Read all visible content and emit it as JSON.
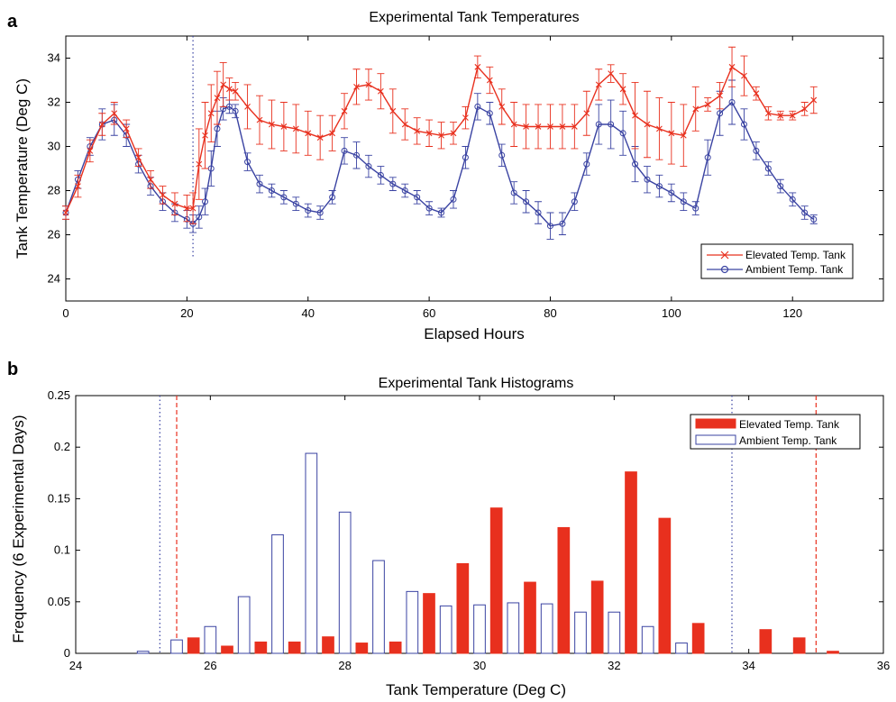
{
  "chart_data": [
    {
      "panel_label": "a",
      "type": "line",
      "title": "Experimental Tank Temperatures",
      "xlabel": "Elapsed Hours",
      "ylabel": "Tank Temperature (Deg C)",
      "xlim": [
        0,
        135
      ],
      "ylim": [
        23,
        35
      ],
      "xticks": [
        0,
        20,
        40,
        60,
        80,
        100,
        120
      ],
      "yticks": [
        24,
        26,
        28,
        30,
        32,
        34
      ],
      "xtick_labels": [
        "0",
        "20",
        "40",
        "60",
        "80",
        "100",
        "120"
      ],
      "ytick_labels": [
        "24",
        "26",
        "28",
        "30",
        "32",
        "34"
      ],
      "vline_x": 21,
      "vline_range": [
        25,
        35
      ],
      "legend_position": "bottom-right",
      "series": [
        {
          "name": "Elevated Temp. Tank",
          "color": "#e8301e",
          "marker": "x",
          "x": [
            0,
            2,
            4,
            6,
            8,
            10,
            12,
            14,
            16,
            18,
            20,
            21,
            22,
            23,
            24,
            25,
            26,
            27,
            28,
            30,
            32,
            34,
            36,
            38,
            40,
            42,
            44,
            46,
            48,
            50,
            52,
            54,
            56,
            58,
            60,
            62,
            64,
            66,
            68,
            70,
            72,
            74,
            76,
            78,
            80,
            82,
            84,
            86,
            88,
            90,
            92,
            94,
            96,
            98,
            100,
            102,
            104,
            106,
            108,
            110,
            112,
            114,
            116,
            118,
            120,
            122,
            123.5
          ],
          "y": [
            27.0,
            28.2,
            29.8,
            31.0,
            31.5,
            30.8,
            29.5,
            28.5,
            27.8,
            27.4,
            27.2,
            27.2,
            29.2,
            30.5,
            31.5,
            32.2,
            32.8,
            32.6,
            32.5,
            31.8,
            31.2,
            31.0,
            30.9,
            30.8,
            30.6,
            30.4,
            30.6,
            31.6,
            32.7,
            32.8,
            32.5,
            31.6,
            31.0,
            30.7,
            30.6,
            30.5,
            30.6,
            31.3,
            33.6,
            33.0,
            31.8,
            31.0,
            30.9,
            30.9,
            30.9,
            30.9,
            30.9,
            31.5,
            32.8,
            33.3,
            32.6,
            31.4,
            31.0,
            30.8,
            30.6,
            30.5,
            31.7,
            31.9,
            32.3,
            33.6,
            33.2,
            32.4,
            31.5,
            31.4,
            31.4,
            31.7,
            32.1
          ],
          "err": [
            0.3,
            0.5,
            0.5,
            0.5,
            0.5,
            0.4,
            0.4,
            0.4,
            0.4,
            0.5,
            0.6,
            0.7,
            1.6,
            1.5,
            1.3,
            1.2,
            1.0,
            0.5,
            0.4,
            1.0,
            1.1,
            1.1,
            1.1,
            1.1,
            1.0,
            1.0,
            0.8,
            0.8,
            0.8,
            0.7,
            0.8,
            1.0,
            0.7,
            0.6,
            0.6,
            0.6,
            0.5,
            0.5,
            0.5,
            0.6,
            0.8,
            1.0,
            1.0,
            1.0,
            1.0,
            1.0,
            1.0,
            1.0,
            0.7,
            0.4,
            0.7,
            1.5,
            1.5,
            1.4,
            1.4,
            1.4,
            1.0,
            0.3,
            0.6,
            0.9,
            0.9,
            0.3,
            0.3,
            0.2,
            0.2,
            0.3,
            0.6
          ]
        },
        {
          "name": "Ambient Temp. Tank",
          "color": "#3a43a2",
          "marker": "o",
          "x": [
            0,
            2,
            4,
            6,
            8,
            10,
            12,
            14,
            16,
            18,
            20,
            21,
            22,
            23,
            24,
            25,
            26,
            27,
            28,
            30,
            32,
            34,
            36,
            38,
            40,
            42,
            44,
            46,
            48,
            50,
            52,
            54,
            56,
            58,
            60,
            62,
            64,
            66,
            68,
            70,
            72,
            74,
            76,
            78,
            80,
            82,
            84,
            86,
            88,
            90,
            92,
            94,
            96,
            98,
            100,
            102,
            104,
            106,
            108,
            110,
            112,
            114,
            116,
            118,
            120,
            122,
            123.5
          ],
          "y": [
            27.0,
            28.5,
            30.0,
            31.0,
            31.2,
            30.5,
            29.2,
            28.2,
            27.5,
            27.0,
            26.7,
            26.5,
            26.8,
            27.5,
            29.0,
            30.8,
            31.7,
            31.8,
            31.6,
            29.3,
            28.3,
            28.0,
            27.7,
            27.4,
            27.1,
            27.0,
            27.7,
            29.8,
            29.6,
            29.1,
            28.7,
            28.3,
            28.0,
            27.7,
            27.2,
            27.0,
            27.6,
            29.5,
            31.8,
            31.5,
            29.6,
            27.9,
            27.5,
            27.0,
            26.4,
            26.5,
            27.5,
            29.2,
            31.0,
            31.0,
            30.6,
            29.2,
            28.5,
            28.2,
            27.9,
            27.5,
            27.2,
            29.5,
            31.5,
            32.0,
            31.0,
            29.8,
            29.0,
            28.2,
            27.6,
            27.0,
            26.7
          ],
          "err": [
            0.3,
            0.4,
            0.4,
            0.7,
            0.7,
            0.5,
            0.4,
            0.4,
            0.4,
            0.4,
            0.4,
            0.4,
            0.5,
            0.6,
            0.8,
            0.8,
            0.5,
            0.3,
            0.3,
            0.4,
            0.4,
            0.3,
            0.3,
            0.3,
            0.3,
            0.3,
            0.3,
            0.6,
            0.6,
            0.5,
            0.4,
            0.3,
            0.3,
            0.3,
            0.3,
            0.2,
            0.4,
            0.5,
            0.6,
            0.5,
            0.5,
            0.5,
            0.5,
            0.5,
            0.6,
            0.5,
            0.4,
            0.5,
            0.9,
            1.1,
            1.0,
            0.8,
            0.6,
            0.5,
            0.4,
            0.4,
            0.3,
            0.8,
            1.0,
            1.0,
            0.7,
            0.4,
            0.3,
            0.3,
            0.3,
            0.3,
            0.2
          ]
        }
      ]
    },
    {
      "panel_label": "b",
      "type": "bar",
      "title": "Experimental Tank Histograms",
      "xlabel": "Tank Temperature (Deg C)",
      "ylabel": "Frequency (6 Experimental Days)",
      "xlim": [
        24,
        36
      ],
      "ylim": [
        0,
        0.25
      ],
      "xticks": [
        24,
        26,
        28,
        30,
        32,
        34,
        36
      ],
      "yticks": [
        0,
        0.05,
        0.1,
        0.15,
        0.2,
        0.25
      ],
      "xtick_labels": [
        "24",
        "26",
        "28",
        "30",
        "32",
        "34",
        "36"
      ],
      "ytick_labels": [
        "0",
        "0.05",
        "0.1",
        "0.15",
        "0.2",
        "0.25"
      ],
      "vlines": [
        {
          "x": 25.25,
          "style": "dotted",
          "color": "#3a43a2"
        },
        {
          "x": 25.5,
          "style": "dashed",
          "color": "#e8301e"
        },
        {
          "x": 33.75,
          "style": "dotted",
          "color": "#3a43a2"
        },
        {
          "x": 35.0,
          "style": "dashed",
          "color": "#e8301e"
        }
      ],
      "legend_position": "top-right",
      "bin_centers": [
        25.25,
        25.75,
        26.25,
        26.75,
        27.25,
        27.75,
        28.25,
        28.75,
        29.25,
        29.75,
        30.25,
        30.75,
        31.25,
        31.75,
        32.25,
        32.75,
        33.25,
        33.75,
        34.25,
        34.75,
        35.25
      ],
      "series": [
        {
          "name": "Elevated Temp. Tank",
          "fill": "#e8301e",
          "stroke": "#e8301e",
          "values": [
            0,
            0.015,
            0.007,
            0.011,
            0.011,
            0.016,
            0.01,
            0.011,
            0.058,
            0.087,
            0.141,
            0.069,
            0.122,
            0.07,
            0.176,
            0.131,
            0.029,
            0,
            0.023,
            0.015,
            0.002
          ]
        },
        {
          "name": "Ambient Temp. Tank",
          "fill": "#ffffff",
          "stroke": "#3a43a2",
          "values": [
            0.002,
            0.013,
            0.026,
            0.055,
            0.115,
            0.194,
            0.137,
            0.09,
            0.06,
            0.046,
            0.047,
            0.049,
            0.048,
            0.04,
            0.04,
            0.026,
            0.01,
            0,
            0,
            0,
            0
          ]
        }
      ]
    }
  ]
}
